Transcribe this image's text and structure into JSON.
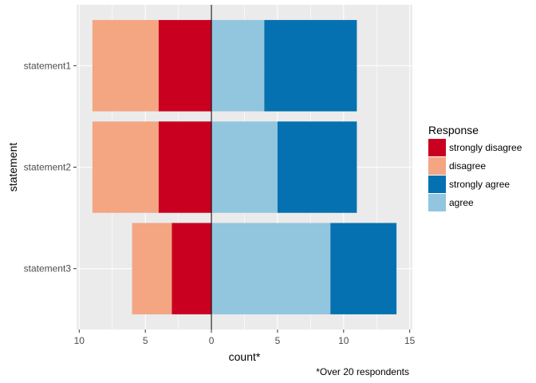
{
  "chart_data": {
    "type": "bar",
    "orientation": "horizontal",
    "stacked": "diverging",
    "categories": [
      "statement1",
      "statement2",
      "statement3"
    ],
    "series": [
      {
        "name": "strongly disagree",
        "color": "#ca0020",
        "values": [
          -4,
          -4,
          -3
        ]
      },
      {
        "name": "disagree",
        "color": "#f4a582",
        "values": [
          -5,
          -5,
          -3
        ]
      },
      {
        "name": "agree",
        "color": "#92c5de",
        "values": [
          4,
          5,
          9
        ]
      },
      {
        "name": "strongly agree",
        "color": "#0571b0",
        "values": [
          7,
          6,
          5
        ]
      }
    ],
    "x_tick_values": [
      -10,
      -5,
      0,
      5,
      10,
      15
    ],
    "x_tick_labels": [
      "10",
      "5",
      "0",
      "5",
      "10",
      "15"
    ],
    "xlim": [
      -10.2,
      15.2
    ],
    "xlabel": "count*",
    "ylabel": "statement",
    "grid": true,
    "panel_background": "#ebebeb",
    "zero_line": true,
    "legend": {
      "title": "Response",
      "position": "right",
      "items": [
        {
          "label": "strongly disagree",
          "color": "#ca0020"
        },
        {
          "label": "disagree",
          "color": "#f4a582"
        },
        {
          "label": "strongly agree",
          "color": "#0571b0"
        },
        {
          "label": "agree",
          "color": "#92c5de"
        }
      ]
    },
    "caption": "*Over 20 respondents"
  }
}
